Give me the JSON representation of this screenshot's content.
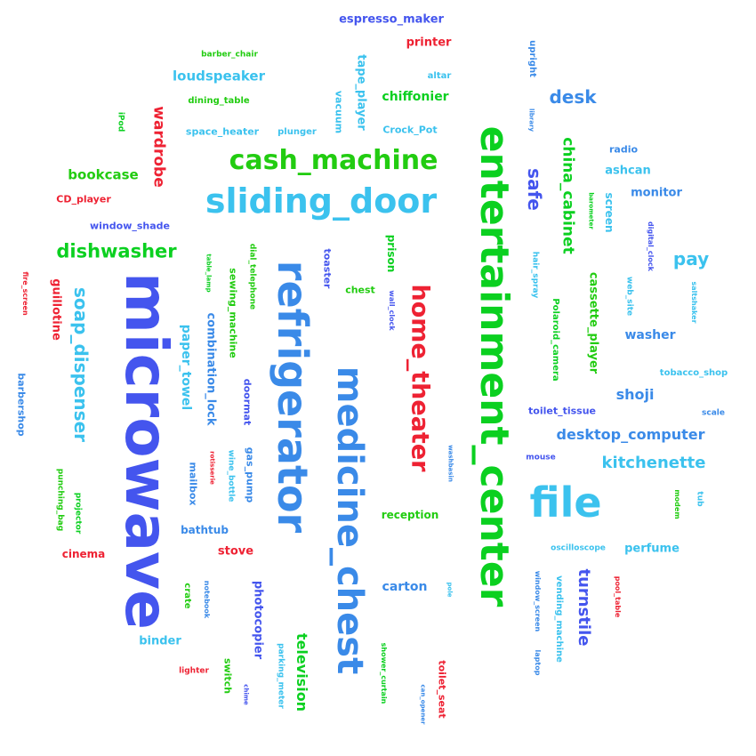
{
  "palette": {
    "green": "#22cc11",
    "deep_green": "#0bd020",
    "blue": "#4455ee",
    "sky": "#3bc2ee",
    "mid_blue": "#3a8ae8",
    "red": "#ee2233"
  },
  "words": [
    {
      "text": "espresso_maker",
      "color": "blue"
    },
    {
      "text": "printer",
      "color": "red"
    },
    {
      "text": "barber_chair",
      "color": "green"
    },
    {
      "text": "altar",
      "color": "sky"
    },
    {
      "text": "loudspeaker",
      "color": "sky"
    },
    {
      "text": "upright",
      "color": "mid_blue"
    },
    {
      "text": "tape_player",
      "color": "sky"
    },
    {
      "text": "vacuum",
      "color": "sky"
    },
    {
      "text": "chiffonier",
      "color": "deep_green"
    },
    {
      "text": "desk",
      "color": "mid_blue"
    },
    {
      "text": "entertainment_center",
      "color": "deep_green"
    },
    {
      "text": "dining_table",
      "color": "green"
    },
    {
      "text": "iPod",
      "color": "deep_green"
    },
    {
      "text": "wardrobe",
      "color": "red"
    },
    {
      "text": "space_heater",
      "color": "sky"
    },
    {
      "text": "plunger",
      "color": "sky"
    },
    {
      "text": "Crock_Pot",
      "color": "sky"
    },
    {
      "text": "library",
      "color": "mid_blue"
    },
    {
      "text": "china_cabinet",
      "color": "deep_green"
    },
    {
      "text": "radio",
      "color": "mid_blue"
    },
    {
      "text": "cash_machine",
      "color": "green"
    },
    {
      "text": "bookcase",
      "color": "green"
    },
    {
      "text": "ashcan",
      "color": "sky"
    },
    {
      "text": "safe",
      "color": "blue"
    },
    {
      "text": "CD_player",
      "color": "red"
    },
    {
      "text": "sliding_door",
      "color": "sky"
    },
    {
      "text": "barometer",
      "color": "deep_green"
    },
    {
      "text": "screen",
      "color": "sky"
    },
    {
      "text": "monitor",
      "color": "mid_blue"
    },
    {
      "text": "window_shade",
      "color": "blue"
    },
    {
      "text": "digital_clock",
      "color": "blue"
    },
    {
      "text": "dishwasher",
      "color": "deep_green"
    },
    {
      "text": "pay",
      "color": "sky"
    },
    {
      "text": "table_lamp",
      "color": "deep_green"
    },
    {
      "text": "dial_telephone",
      "color": "green"
    },
    {
      "text": "prison",
      "color": "deep_green"
    },
    {
      "text": "fire_screen",
      "color": "red"
    },
    {
      "text": "guillotine",
      "color": "red"
    },
    {
      "text": "sewing_machine",
      "color": "green"
    },
    {
      "text": "toaster",
      "color": "blue"
    },
    {
      "text": "hair_spray",
      "color": "sky"
    },
    {
      "text": "web_site",
      "color": "sky"
    },
    {
      "text": "chest",
      "color": "green"
    },
    {
      "text": "cassette_player",
      "color": "green"
    },
    {
      "text": "saltshaker",
      "color": "sky"
    },
    {
      "text": "soap_dispenser",
      "color": "sky"
    },
    {
      "text": "microwave",
      "color": "blue"
    },
    {
      "text": "refrigerator",
      "color": "mid_blue"
    },
    {
      "text": "medicine_chest",
      "color": "mid_blue"
    },
    {
      "text": "home_theater",
      "color": "red"
    },
    {
      "text": "wall_clock",
      "color": "blue"
    },
    {
      "text": "Polaroid_camera",
      "color": "deep_green"
    },
    {
      "text": "washer",
      "color": "mid_blue"
    },
    {
      "text": "paper_towel",
      "color": "sky"
    },
    {
      "text": "combination_lock",
      "color": "mid_blue"
    },
    {
      "text": "barbershop",
      "color": "mid_blue"
    },
    {
      "text": "tobacco_shop",
      "color": "sky"
    },
    {
      "text": "doormat",
      "color": "blue"
    },
    {
      "text": "shoji",
      "color": "mid_blue"
    },
    {
      "text": "toilet_tissue",
      "color": "blue"
    },
    {
      "text": "scale",
      "color": "mid_blue"
    },
    {
      "text": "desktop_computer",
      "color": "mid_blue"
    },
    {
      "text": "rotisserie",
      "color": "red"
    },
    {
      "text": "wine_bottle",
      "color": "sky"
    },
    {
      "text": "gas_pump",
      "color": "mid_blue"
    },
    {
      "text": "mailbox",
      "color": "mid_blue"
    },
    {
      "text": "mouse",
      "color": "blue"
    },
    {
      "text": "washbasin",
      "color": "mid_blue"
    },
    {
      "text": "kitchenette",
      "color": "sky"
    },
    {
      "text": "punching_bag",
      "color": "green"
    },
    {
      "text": "projector",
      "color": "deep_green"
    },
    {
      "text": "file",
      "color": "sky"
    },
    {
      "text": "modem",
      "color": "green"
    },
    {
      "text": "tub",
      "color": "sky"
    },
    {
      "text": "reception",
      "color": "green"
    },
    {
      "text": "bathtub",
      "color": "mid_blue"
    },
    {
      "text": "cinema",
      "color": "red"
    },
    {
      "text": "stove",
      "color": "red"
    },
    {
      "text": "oscilloscope",
      "color": "sky"
    },
    {
      "text": "perfume",
      "color": "sky"
    },
    {
      "text": "turnstile",
      "color": "blue"
    },
    {
      "text": "crate",
      "color": "green"
    },
    {
      "text": "notebook",
      "color": "mid_blue"
    },
    {
      "text": "photocopier",
      "color": "blue"
    },
    {
      "text": "carton",
      "color": "mid_blue"
    },
    {
      "text": "pole",
      "color": "sky"
    },
    {
      "text": "window_screen",
      "color": "mid_blue"
    },
    {
      "text": "vending_machine",
      "color": "sky"
    },
    {
      "text": "pool_table",
      "color": "red"
    },
    {
      "text": "binder",
      "color": "sky"
    },
    {
      "text": "parking_meter",
      "color": "sky"
    },
    {
      "text": "television",
      "color": "deep_green"
    },
    {
      "text": "shower_curtain",
      "color": "deep_green"
    },
    {
      "text": "laptop",
      "color": "mid_blue"
    },
    {
      "text": "lighter",
      "color": "red"
    },
    {
      "text": "switch",
      "color": "green"
    },
    {
      "text": "chime",
      "color": "blue"
    },
    {
      "text": "toilet_seat",
      "color": "red"
    },
    {
      "text": "can_opener",
      "color": "mid_blue"
    }
  ]
}
